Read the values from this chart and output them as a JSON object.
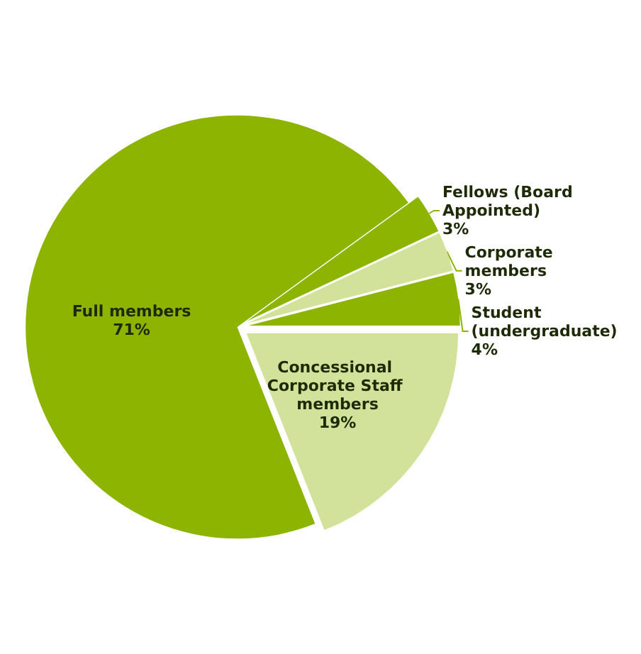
{
  "chart_data": {
    "type": "pie",
    "categories": [
      "Fellows (Board Appointed)",
      "Corporate members",
      "Student (undergraduate)",
      "Concessional Corporate Staff members",
      "Full members"
    ],
    "values": [
      3,
      3,
      4,
      19,
      71
    ],
    "colors": [
      "#8cb400",
      "#d3e29a",
      "#8cb400",
      "#d3e29a",
      "#8cb400"
    ],
    "value_labels": [
      "3%",
      "3%",
      "4%",
      "19%",
      "71%"
    ],
    "legend": false
  }
}
